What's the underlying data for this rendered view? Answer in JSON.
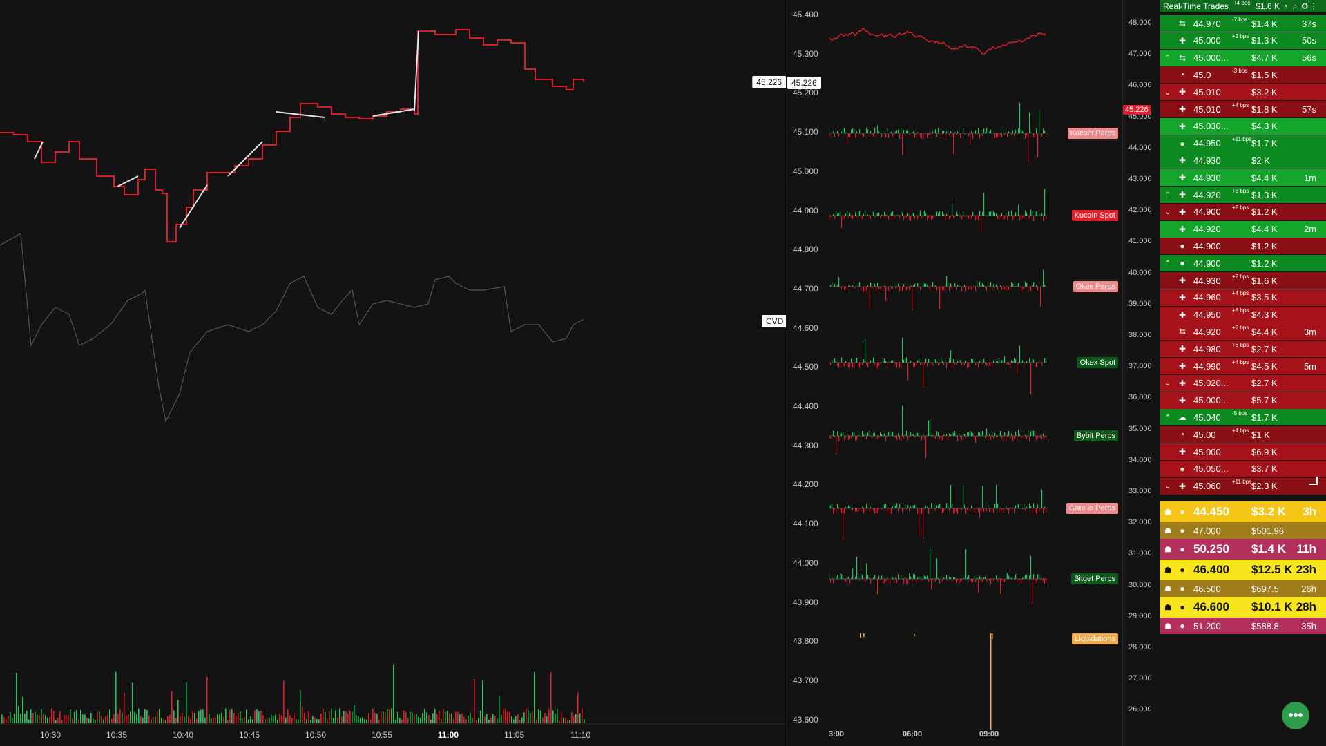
{
  "left_chart": {
    "time_labels": [
      "10:30",
      "10:35",
      "10:40",
      "10:45",
      "10:50",
      "10:55",
      "11:00",
      "11:05",
      "11:10"
    ],
    "cvd_label": "CVD",
    "price_tag": "45.226"
  },
  "mid_chart": {
    "price_labels": [
      "45.400",
      "45.300",
      "45.200",
      "45.100",
      "45.000",
      "44.900",
      "44.800",
      "44.700",
      "44.600",
      "44.500",
      "44.400",
      "44.300",
      "44.200",
      "44.100",
      "44.000",
      "43.900",
      "43.800",
      "43.700",
      "43.600"
    ],
    "right_labels": [
      "48.000",
      "47.000",
      "46.000",
      "45.000",
      "44.000",
      "43.000",
      "42.000",
      "41.000",
      "40.000",
      "39.000",
      "38.000",
      "37.000",
      "36.000",
      "35.000",
      "34.000",
      "33.000",
      "32.000",
      "31.000",
      "30.000",
      "29.000",
      "28.000",
      "27.000",
      "26.000"
    ],
    "current_price": "45.226",
    "time_labels": [
      "3:00",
      "06:00",
      "09:00"
    ],
    "exchanges": [
      {
        "name": "Kucoin Perps",
        "bg": "#f08a8a"
      },
      {
        "name": "Kucoin Spot",
        "bg": "#e01e2b"
      },
      {
        "name": "Okex Perps",
        "bg": "#f08a8a"
      },
      {
        "name": "Okex Spot",
        "bg": "#0d5b1b"
      },
      {
        "name": "Bybit Perps",
        "bg": "#0d5b1b"
      },
      {
        "name": "Gate io Perps",
        "bg": "#f08a8a"
      },
      {
        "name": "Bitget Perps",
        "bg": "#0d5b1b"
      },
      {
        "name": "Liquidations",
        "bg": "#f2a94a"
      }
    ]
  },
  "trades": {
    "title": "Real-Time Trades",
    "header_bps": "+4 bps",
    "header_amt": "$1.6 K",
    "rows": [
      {
        "chev": "",
        "icon": "⇆",
        "price": "44.970",
        "bps": "-7 bps",
        "amt": "$1.4 K",
        "age": "37s",
        "bg": "#0c8a1f"
      },
      {
        "chev": "",
        "icon": "✚",
        "price": "45.000",
        "bps": "+2 bps",
        "amt": "$1.3 K",
        "age": "50s",
        "bg": "#0c8a1f"
      },
      {
        "chev": "^",
        "icon": "⇆",
        "price": "45.000...",
        "bps": "",
        "amt": "$4.7 K",
        "age": "56s",
        "bg": "#14a52b"
      },
      {
        "chev": "",
        "icon": "◔",
        "price": "45.0",
        "bps": "-3 bps",
        "amt": "$1.5 K",
        "age": "",
        "bg": "#8a0f14"
      },
      {
        "chev": "v",
        "icon": "✚",
        "price": "45.010",
        "bps": "",
        "amt": "$3.2 K",
        "age": "",
        "bg": "#a51219"
      },
      {
        "chev": "",
        "icon": "✚",
        "price": "45.010",
        "bps": "+4 bps",
        "amt": "$1.8 K",
        "age": "57s",
        "bg": "#8a0f14"
      },
      {
        "chev": "",
        "icon": "✚",
        "price": "45.030...",
        "bps": "",
        "amt": "$4.3 K",
        "age": "",
        "bg": "#14a52b"
      },
      {
        "chev": "",
        "icon": "●",
        "price": "44.950",
        "bps": "+11 bps",
        "amt": "$1.7 K",
        "age": "",
        "bg": "#0c8a1f"
      },
      {
        "chev": "",
        "icon": "✚",
        "price": "44.930",
        "bps": "",
        "amt": "$2 K",
        "age": "",
        "bg": "#0c8a1f"
      },
      {
        "chev": "",
        "icon": "✚",
        "price": "44.930",
        "bps": "",
        "amt": "$4.4 K",
        "age": "1m",
        "bg": "#14a52b"
      },
      {
        "chev": "^",
        "icon": "✚",
        "price": "44.920",
        "bps": "+8 bps",
        "amt": "$1.3 K",
        "age": "",
        "bg": "#0c8a1f"
      },
      {
        "chev": "v",
        "icon": "✚",
        "price": "44.900",
        "bps": "+2 bps",
        "amt": "$1.2 K",
        "age": "",
        "bg": "#8a0f14"
      },
      {
        "chev": "",
        "icon": "✚",
        "price": "44.920",
        "bps": "",
        "amt": "$4.4 K",
        "age": "2m",
        "bg": "#14a52b"
      },
      {
        "chev": "",
        "icon": "●",
        "price": "44.900",
        "bps": "",
        "amt": "$1.2 K",
        "age": "",
        "bg": "#8a0f14"
      },
      {
        "chev": "^",
        "icon": "●",
        "price": "44.900",
        "bps": "",
        "amt": "$1.2 K",
        "age": "",
        "bg": "#0c8a1f"
      },
      {
        "chev": "",
        "icon": "✚",
        "price": "44.930",
        "bps": "+2 bps",
        "amt": "$1.6 K",
        "age": "",
        "bg": "#8a0f14"
      },
      {
        "chev": "",
        "icon": "✚",
        "price": "44.960",
        "bps": "+4 bps",
        "amt": "$3.5 K",
        "age": "",
        "bg": "#a51219"
      },
      {
        "chev": "",
        "icon": "✚",
        "price": "44.950",
        "bps": "+8 bps",
        "amt": "$4.3 K",
        "age": "",
        "bg": "#a51219"
      },
      {
        "chev": "",
        "icon": "⇆",
        "price": "44.920",
        "bps": "+2 bps",
        "amt": "$4.4 K",
        "age": "3m",
        "bg": "#a51219"
      },
      {
        "chev": "",
        "icon": "✚",
        "price": "44.980",
        "bps": "+6 bps",
        "amt": "$2.7 K",
        "age": "",
        "bg": "#a51219"
      },
      {
        "chev": "",
        "icon": "✚",
        "price": "44.990",
        "bps": "+4 bps",
        "amt": "$4.5 K",
        "age": "5m",
        "bg": "#a51219"
      },
      {
        "chev": "v",
        "icon": "✚",
        "price": "45.020...",
        "bps": "",
        "amt": "$2.7 K",
        "age": "",
        "bg": "#a51219"
      },
      {
        "chev": "",
        "icon": "✚",
        "price": "45.000...",
        "bps": "",
        "amt": "$5.7 K",
        "age": "",
        "bg": "#a51219"
      },
      {
        "chev": "^",
        "icon": "☁",
        "price": "45.040",
        "bps": "-5 bps",
        "amt": "$1.7 K",
        "age": "",
        "bg": "#0c8a1f"
      },
      {
        "chev": "",
        "icon": "◔",
        "price": "45.00",
        "bps": "+4 bps",
        "amt": "$1 K",
        "age": "",
        "bg": "#8a0f14"
      },
      {
        "chev": "",
        "icon": "✚",
        "price": "45.000",
        "bps": "",
        "amt": "$6.9 K",
        "age": "",
        "bg": "#a51219"
      },
      {
        "chev": "",
        "icon": "●",
        "price": "45.050...",
        "bps": "",
        "amt": "$3.7 K",
        "age": "",
        "bg": "#a51219"
      },
      {
        "chev": "v",
        "icon": "✚",
        "price": "45.060",
        "bps": "+11 bps",
        "amt": "$2.3 K",
        "age": "",
        "bg": "#8a0f14"
      }
    ],
    "liquidations": [
      {
        "price": "44.450",
        "amt": "$3.2 K",
        "age": "3h",
        "bg": "#f5c518",
        "fg": "#fff",
        "big": true
      },
      {
        "price": "47.000",
        "amt": "$501.96",
        "age": "",
        "bg": "#a07c1a",
        "fg": "#fff",
        "big": false
      },
      {
        "price": "50.250",
        "amt": "$1.4 K",
        "age": "11h",
        "bg": "#b2305a",
        "fg": "#fff",
        "big": true
      },
      {
        "price": "46.400",
        "amt": "$12.5 K",
        "age": "23h",
        "bg": "#f8e51e",
        "fg": "#111",
        "big": true
      },
      {
        "price": "46.500",
        "amt": "$697.5",
        "age": "26h",
        "bg": "#a07c1a",
        "fg": "#fff",
        "big": false
      },
      {
        "price": "46.600",
        "amt": "$10.1 K",
        "age": "28h",
        "bg": "#f8e51e",
        "fg": "#111",
        "big": true
      },
      {
        "price": "51.200",
        "amt": "$588.8",
        "age": "35h",
        "bg": "#b2305a",
        "fg": "#fff",
        "big": false
      }
    ]
  }
}
